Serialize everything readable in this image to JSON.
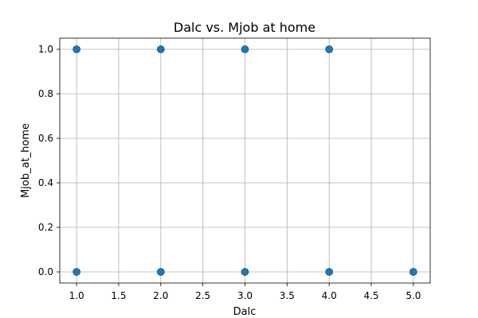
{
  "chart_data": {
    "type": "scatter",
    "title": "Dalc vs. Mjob at home",
    "xlabel": "Dalc",
    "ylabel": "Mjob_at_home",
    "xlim": [
      0.8,
      5.2
    ],
    "ylim": [
      -0.05,
      1.05
    ],
    "xticks": [
      1.0,
      1.5,
      2.0,
      2.5,
      3.0,
      3.5,
      4.0,
      4.5,
      5.0
    ],
    "yticks": [
      0.0,
      0.2,
      0.4,
      0.6,
      0.8,
      1.0
    ],
    "xtick_labels": [
      "1.0",
      "1.5",
      "2.0",
      "2.5",
      "3.0",
      "3.5",
      "4.0",
      "4.5",
      "5.0"
    ],
    "ytick_labels": [
      "0.0",
      "0.2",
      "0.4",
      "0.6",
      "0.8",
      "1.0"
    ],
    "grid": true,
    "color": "#1f77b4",
    "points": [
      {
        "x": 1,
        "y": 1
      },
      {
        "x": 2,
        "y": 1
      },
      {
        "x": 3,
        "y": 1
      },
      {
        "x": 4,
        "y": 1
      },
      {
        "x": 1,
        "y": 0
      },
      {
        "x": 2,
        "y": 0
      },
      {
        "x": 3,
        "y": 0
      },
      {
        "x": 4,
        "y": 0
      },
      {
        "x": 5,
        "y": 0
      }
    ]
  }
}
